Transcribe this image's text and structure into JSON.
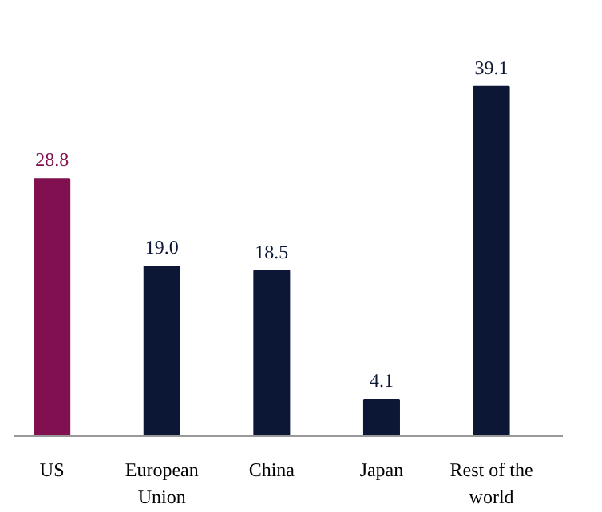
{
  "chart_data": {
    "type": "bar",
    "categories": [
      "US",
      "European\nUnion",
      "China",
      "Japan",
      "Rest of the\nworld"
    ],
    "values": [
      28.8,
      19.0,
      18.5,
      4.1,
      39.1
    ],
    "colors": [
      "#80104f",
      "#0c1736",
      "#0c1736",
      "#0c1736",
      "#0c1736"
    ],
    "value_labels": [
      "28.8",
      "19.0",
      "18.5",
      "4.1",
      "39.1"
    ],
    "grid": false
  }
}
